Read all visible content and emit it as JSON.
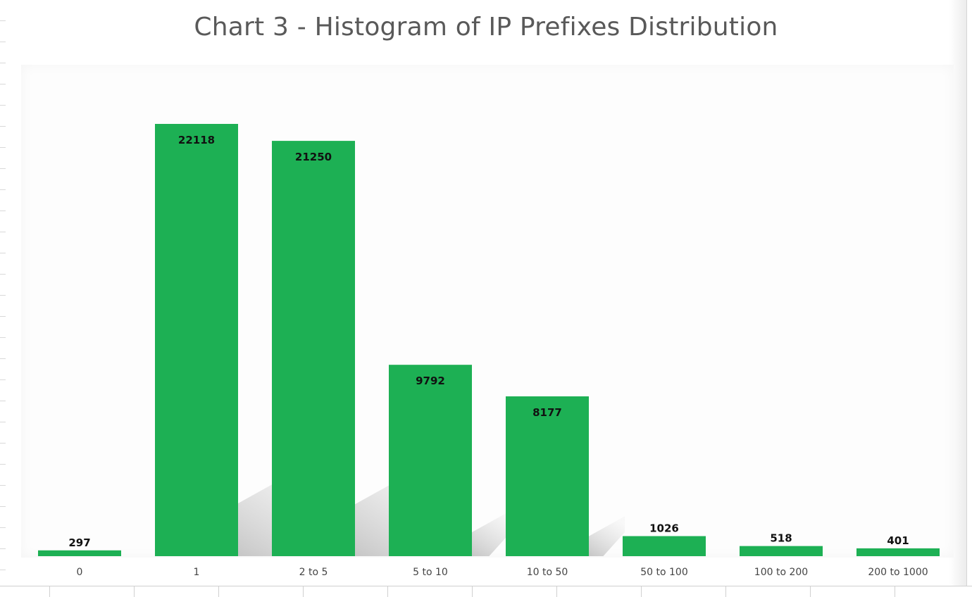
{
  "chart_data": {
    "type": "bar",
    "title": "Chart 3 - Histogram of IP Prefixes Distribution",
    "xlabel": "",
    "ylabel": "",
    "categories": [
      "0",
      "1",
      "2 to 5",
      "5 to 10",
      "10 to 50",
      "50 to 100",
      "100 to 200",
      "200 to 1000"
    ],
    "values": [
      297,
      22118,
      21250,
      9792,
      8177,
      1026,
      518,
      401
    ],
    "data_labels": [
      "297",
      "22118",
      "21250",
      "9792",
      "8177",
      "1026",
      "518",
      "401"
    ],
    "ylim": [
      0,
      25000
    ],
    "grid": false,
    "legend": "none",
    "colors": {
      "bar": "#1db054",
      "title": "#595959",
      "label": "#111111",
      "axis_text": "#444444"
    }
  }
}
